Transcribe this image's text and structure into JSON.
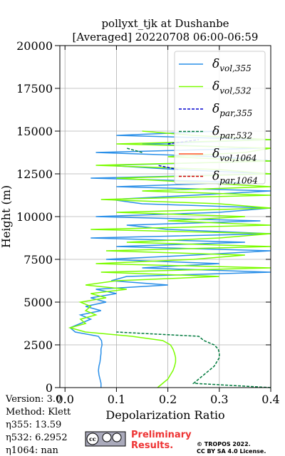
{
  "chart_data": {
    "type": "profile",
    "title": [
      "pollyxt_tjk at Dushanbe",
      "[Averaged] 20220708 06:00-06:59"
    ],
    "xlabel": "Depolarization Ratio",
    "ylabel": "Height (m)",
    "xlim": [
      -0.01,
      0.4
    ],
    "ylim": [
      0,
      20000
    ],
    "xticks": [
      {
        "value": 0,
        "label": "0.0"
      },
      0.1,
      0.2,
      0.3,
      0.4
    ],
    "yticks": [
      0,
      2500,
      5000,
      7500,
      10000,
      12500,
      15000,
      17500,
      20000
    ],
    "grid": true,
    "legend": "upper right",
    "heights": [
      0,
      250,
      500,
      750,
      1000,
      1250,
      1500,
      1750,
      2000,
      2250,
      2500,
      2750,
      3000,
      3250,
      3500,
      3750,
      4000,
      4250,
      4500,
      4750,
      5000,
      5250,
      5500,
      5750,
      6000,
      6250,
      6500,
      6750,
      7000,
      7250,
      7500,
      7750,
      8000,
      8250,
      8500,
      8750,
      9000,
      9250,
      9500,
      9750,
      10000,
      10250,
      10500,
      10750,
      11000,
      11250,
      11500,
      11750,
      12000,
      12250,
      12500,
      12750,
      13000,
      13250,
      13500,
      13750,
      14000,
      14250,
      14500,
      14750,
      15000
    ],
    "series": [
      {
        "name": "δvol,355",
        "color": "#2a8fe8",
        "dash": false,
        "values": [
          0.07,
          0.07,
          0.068,
          0.066,
          0.065,
          0.066,
          0.068,
          0.069,
          0.07,
          0.07,
          0.072,
          0.071,
          0.065,
          0.02,
          0.01,
          0.03,
          0.05,
          0.03,
          0.07,
          0.04,
          0.08,
          0.05,
          0.1,
          0.06,
          0.2,
          0.09,
          0.12,
          0.4,
          0.15,
          0.3,
          0.08,
          0.25,
          0.4,
          0.1,
          0.35,
          0.05,
          0.4,
          0.2,
          0.12,
          0.38,
          0.06,
          0.3,
          0.4,
          0.15,
          0.09,
          0.25,
          0.4,
          0.1,
          0.35,
          0.05,
          0.4,
          0.22,
          0.08,
          0.4,
          0.3,
          0.06,
          0.38,
          0.15,
          0.4,
          0.1,
          0.3
        ]
      },
      {
        "name": "δvol,532",
        "color": "#7cfc00",
        "dash": false,
        "values": [
          0.18,
          0.19,
          0.2,
          0.205,
          0.21,
          0.213,
          0.215,
          0.215,
          0.213,
          0.21,
          0.205,
          0.19,
          0.13,
          0.04,
          0.01,
          0.04,
          0.03,
          0.06,
          0.04,
          0.05,
          0.03,
          0.08,
          0.05,
          0.12,
          0.04,
          0.1,
          0.3,
          0.07,
          0.4,
          0.06,
          0.25,
          0.35,
          0.08,
          0.4,
          0.12,
          0.3,
          0.4,
          0.05,
          0.4,
          0.2,
          0.35,
          0.1,
          0.4,
          0.3,
          0.07,
          0.4,
          0.15,
          0.4,
          0.25,
          0.1,
          0.4,
          0.3,
          0.06,
          0.4,
          0.2,
          0.35,
          0.4,
          0.1,
          0.4,
          0.25,
          0.15
        ]
      },
      {
        "name": "δpar,355",
        "color": "#0000cd",
        "dash": true,
        "values": [
          null,
          null,
          null,
          null,
          null,
          null,
          null,
          null,
          null,
          null,
          null,
          null,
          null,
          null,
          null,
          null,
          null,
          null,
          null,
          null,
          null,
          null,
          null,
          null,
          null,
          null,
          null,
          null,
          null,
          null,
          null,
          null,
          null,
          null,
          null,
          null,
          null,
          null,
          null,
          null,
          null,
          null,
          null,
          null,
          null,
          null,
          null,
          null,
          null,
          null,
          null,
          0.22,
          0.18,
          null,
          null,
          null,
          null,
          0.2,
          0.26,
          null,
          null
        ]
      },
      {
        "name": "δpar,532",
        "color": "#007a3d",
        "dash": true,
        "values": [
          0.4,
          0.25,
          0.26,
          0.27,
          0.28,
          0.29,
          0.295,
          0.3,
          0.3,
          0.298,
          0.29,
          0.27,
          0.26,
          0.1,
          null,
          null,
          null,
          null,
          null,
          null,
          null,
          null,
          null,
          null,
          null,
          null,
          null,
          null,
          null,
          null,
          null,
          null,
          null,
          null,
          null,
          null,
          null,
          null,
          null,
          null,
          null,
          null,
          null,
          null,
          null,
          null,
          null,
          null,
          null,
          null,
          null,
          null,
          null,
          null,
          null,
          0.15,
          0.12,
          null,
          null,
          null,
          null
        ]
      },
      {
        "name": "δvol,1064",
        "color": "#ff5020",
        "dash": false,
        "values": [
          null,
          null,
          null,
          null,
          null,
          null,
          null,
          null,
          null,
          null,
          null,
          null,
          null,
          null,
          null,
          null,
          null,
          null,
          null,
          null,
          null,
          null,
          null,
          null,
          null,
          null,
          null,
          null,
          null,
          null,
          null,
          null,
          null,
          null,
          null,
          null,
          null,
          null,
          null,
          null,
          null,
          null,
          null,
          null,
          null,
          null,
          null,
          null,
          null,
          null,
          null,
          null,
          null,
          null,
          null,
          null,
          null,
          null,
          null,
          null,
          null
        ]
      },
      {
        "name": "δpar,1064",
        "color": "#cc0000",
        "dash": true,
        "values": [
          null,
          null,
          null,
          null,
          null,
          null,
          null,
          null,
          null,
          null,
          null,
          null,
          null,
          null,
          null,
          null,
          null,
          null,
          null,
          null,
          null,
          null,
          null,
          null,
          null,
          null,
          null,
          null,
          null,
          null,
          null,
          null,
          null,
          null,
          null,
          null,
          null,
          null,
          null,
          null,
          null,
          null,
          null,
          null,
          null,
          null,
          null,
          null,
          null,
          null,
          null,
          null,
          null,
          null,
          null,
          null,
          null,
          null,
          null,
          null,
          null
        ]
      }
    ]
  },
  "info": [
    "Version: 3.0",
    "Method: Klett",
    "η355:  13.59",
    "η532: 6.2952",
    "η1064:    nan"
  ],
  "preliminary": [
    "Preliminary",
    "Results."
  ],
  "license": [
    "© TROPOS 2022.",
    "CC BY SA 4.0 License."
  ]
}
